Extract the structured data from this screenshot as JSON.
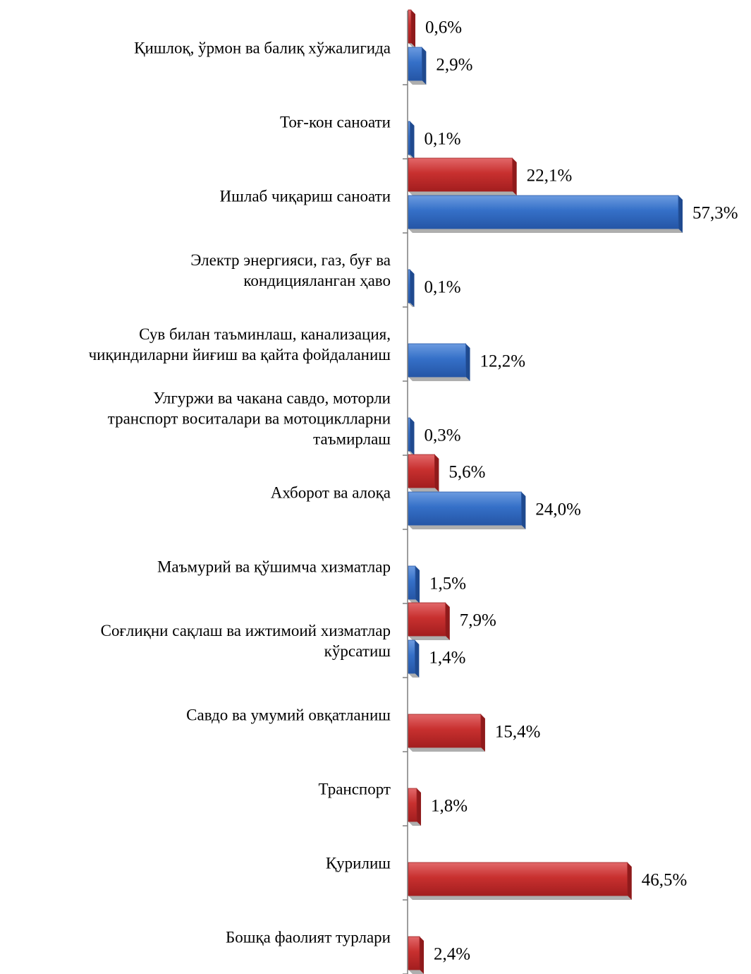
{
  "chart_data": {
    "type": "bar",
    "orientation": "horizontal",
    "colors": {
      "red": "#c0282a",
      "blue": "#2f66bf"
    },
    "categories": [
      {
        "label": [
          "Қишлоқ, ўрмон ва балиқ хўжалигида"
        ],
        "bars": [
          {
            "value": 0.6,
            "text": "0,6%",
            "color": "red"
          },
          {
            "value": 2.9,
            "text": "2,9%",
            "color": "blue"
          }
        ]
      },
      {
        "label": [
          "Тоғ-кон саноати"
        ],
        "bars": [
          {
            "value": 0.1,
            "text": "0,1%",
            "color": "blue"
          }
        ]
      },
      {
        "label": [
          "Ишлаб чиқариш саноати"
        ],
        "bars": [
          {
            "value": 22.1,
            "text": "22,1%",
            "color": "red"
          },
          {
            "value": 57.3,
            "text": "57,3%",
            "color": "blue"
          }
        ]
      },
      {
        "label": [
          "Электр энергияси, газ, буғ ва",
          "кондицияланган ҳаво"
        ],
        "bars": [
          {
            "value": 0.1,
            "text": "0,1%",
            "color": "blue"
          }
        ]
      },
      {
        "label": [
          "Сув билан таъминлаш, канализация,",
          "чиқиндиларни йиғиш ва қайта фойдаланиш"
        ],
        "bars": [
          {
            "value": 12.2,
            "text": "12,2%",
            "color": "blue"
          }
        ]
      },
      {
        "label": [
          "Улгуржи ва чакана савдо, моторли",
          "транспорт воситалари ва мотоциклларни",
          "таъмирлаш"
        ],
        "bars": [
          {
            "value": 0.3,
            "text": "0,3%",
            "color": "blue"
          }
        ]
      },
      {
        "label": [
          "Ахборот ва алоқа"
        ],
        "bars": [
          {
            "value": 5.6,
            "text": "5,6%",
            "color": "red"
          },
          {
            "value": 24.0,
            "text": "24,0%",
            "color": "blue"
          }
        ]
      },
      {
        "label": [
          "Маъмурий ва қўшимча хизматлар"
        ],
        "bars": [
          {
            "value": 1.5,
            "text": "1,5%",
            "color": "blue"
          }
        ]
      },
      {
        "label": [
          "Соғлиқни сақлаш ва ижтимоий хизматлар",
          "кўрсатиш"
        ],
        "bars": [
          {
            "value": 7.9,
            "text": "7,9%",
            "color": "red"
          },
          {
            "value": 1.4,
            "text": "1,4%",
            "color": "blue"
          }
        ]
      },
      {
        "label": [
          "Савдо ва умумий овқатланиш"
        ],
        "bars": [
          {
            "value": 15.4,
            "text": "15,4%",
            "color": "red"
          }
        ]
      },
      {
        "label": [
          "Транспорт"
        ],
        "bars": [
          {
            "value": 1.8,
            "text": "1,8%",
            "color": "red"
          }
        ]
      },
      {
        "label": [
          "Қурилиш"
        ],
        "bars": [
          {
            "value": 46.5,
            "text": "46,5%",
            "color": "red"
          }
        ]
      },
      {
        "label": [
          "Бошқа фаолият турлари"
        ],
        "bars": [
          {
            "value": 2.4,
            "text": "2,4%",
            "color": "red"
          }
        ]
      }
    ],
    "xlim": [
      0,
      60
    ],
    "legend": "none",
    "grid": false
  }
}
